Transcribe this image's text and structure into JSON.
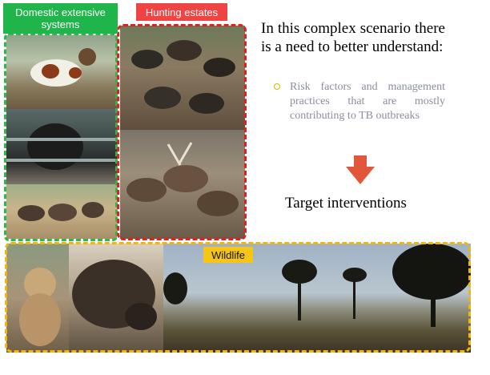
{
  "labels": {
    "domestic": "Domestic extensive systems",
    "hunting": "Hunting estates",
    "wildlife": "Wildlife"
  },
  "text": {
    "heading": "In this complex scenario there is a need to better understand:",
    "bullet": "Risk factors and management practices that are mostly contributing to TB outbreaks",
    "target": "Target interventions"
  },
  "colors": {
    "domestic": "#1fb54a",
    "hunting": "#ee4444",
    "wildlife": "#f5c518",
    "arrow": "#e2573a"
  },
  "icons": {
    "arrow": "down-arrow-icon"
  }
}
